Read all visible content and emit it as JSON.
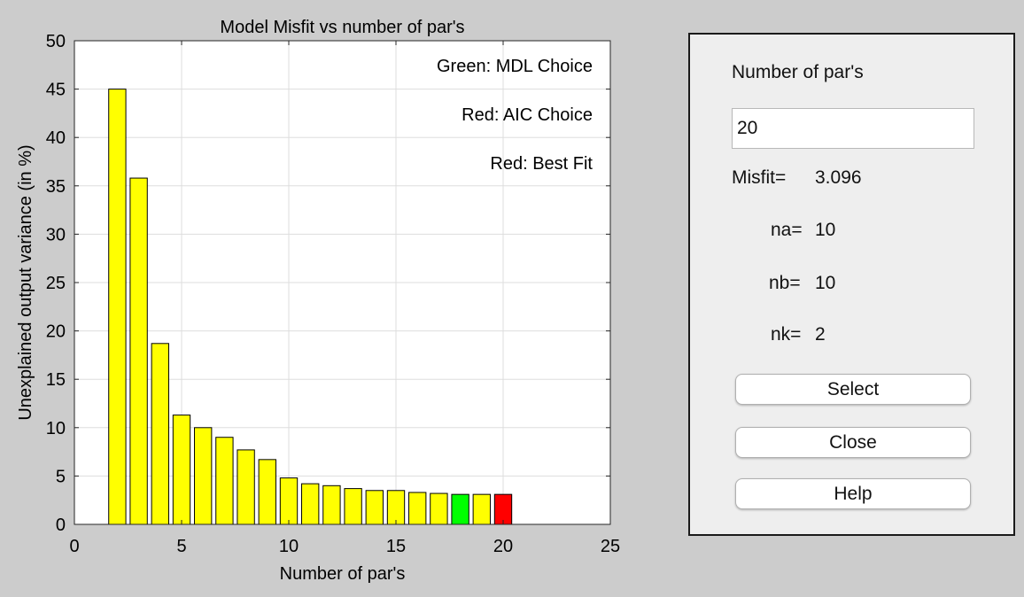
{
  "chart_data": {
    "type": "bar",
    "title": "Model Misfit vs number of par's",
    "xlabel": "Number of par's",
    "ylabel": "Unexplained output variance (in %)",
    "xlim": [
      0,
      25
    ],
    "ylim": [
      0,
      50
    ],
    "xticks": [
      0,
      5,
      10,
      15,
      20,
      25
    ],
    "yticks": [
      0,
      5,
      10,
      15,
      20,
      25,
      30,
      35,
      40,
      45,
      50
    ],
    "grid": true,
    "x": [
      2,
      3,
      4,
      5,
      6,
      7,
      8,
      9,
      10,
      11,
      12,
      13,
      14,
      15,
      16,
      17,
      18,
      19,
      20
    ],
    "values": [
      45.0,
      35.8,
      18.7,
      11.3,
      10.0,
      9.0,
      7.7,
      6.7,
      4.8,
      4.2,
      4.0,
      3.7,
      3.5,
      3.5,
      3.3,
      3.2,
      3.1,
      3.1,
      3.1
    ],
    "colors": {
      "default": "#ffff00",
      "mdl_choice": "#00ff00",
      "aic_choice": "#ff0000",
      "edge": "#000000"
    },
    "mdl_choice_x": 18,
    "aic_choice_x": 20,
    "annotations": [
      "Green: MDL Choice",
      "Red: AIC Choice",
      "Red: Best Fit"
    ]
  },
  "panel": {
    "num_pars_label": "Number of par's",
    "num_pars_value": "20",
    "misfit_label": "Misfit=",
    "misfit_value": "3.096",
    "na_label": "na=",
    "na_value": "10",
    "nb_label": "nb=",
    "nb_value": "10",
    "nk_label": "nk=",
    "nk_value": "2",
    "select_label": "Select",
    "close_label": "Close",
    "help_label": "Help"
  }
}
